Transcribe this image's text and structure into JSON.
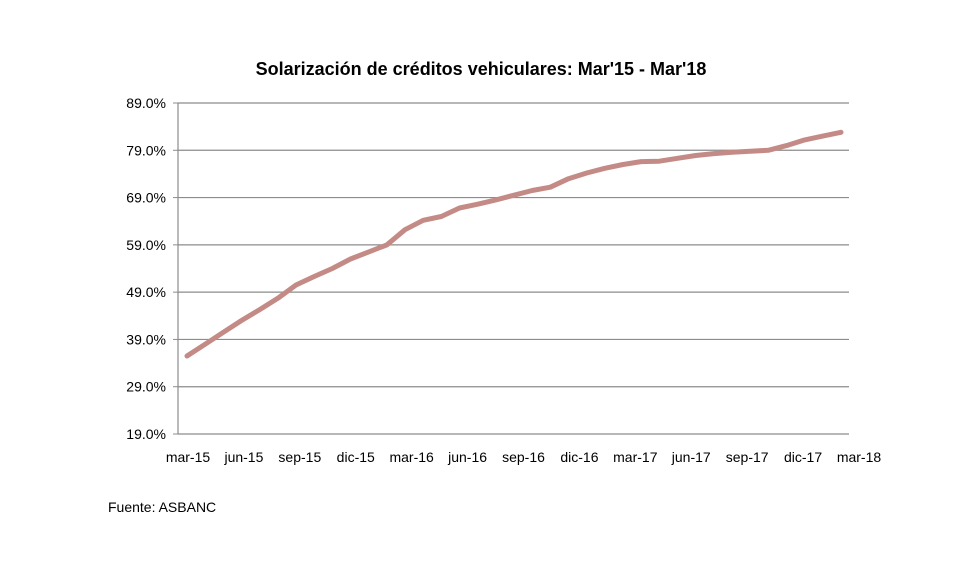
{
  "chart_data": {
    "type": "line",
    "title": "Solarización de créditos vehiculares: Mar'15 - Mar'18",
    "xlabel": "",
    "ylabel": "",
    "x_tick_labels": [
      "mar-15",
      "jun-15",
      "sep-15",
      "dic-15",
      "mar-16",
      "jun-16",
      "sep-16",
      "dic-16",
      "mar-17",
      "jun-17",
      "sep-17",
      "dic-17",
      "mar-18"
    ],
    "y_tick_labels": [
      "89.0%",
      "79.0%",
      "69.0%",
      "59.0%",
      "49.0%",
      "39.0%",
      "29.0%",
      "19.0%"
    ],
    "ylim": [
      19,
      89
    ],
    "y_ticks": [
      89,
      79,
      69,
      59,
      49,
      39,
      29,
      19
    ],
    "gridlines": "horizontal",
    "legend": "none",
    "series": [
      {
        "color": "#c48b86",
        "x": [
          "mar-15",
          "abr-15",
          "may-15",
          "jun-15",
          "jul-15",
          "ago-15",
          "sep-15",
          "oct-15",
          "nov-15",
          "dic-15",
          "ene-16",
          "feb-16",
          "mar-16",
          "abr-16",
          "may-16",
          "jun-16",
          "jul-16",
          "ago-16",
          "sep-16",
          "oct-16",
          "nov-16",
          "dic-16",
          "ene-17",
          "feb-17",
          "mar-17",
          "abr-17",
          "may-17",
          "jun-17",
          "jul-17",
          "ago-17",
          "sep-17",
          "oct-17",
          "nov-17",
          "dic-17",
          "ene-18",
          "feb-18",
          "mar-18"
        ],
        "values": [
          35.5,
          38.0,
          40.5,
          43.0,
          45.3,
          47.7,
          50.5,
          52.3,
          54.0,
          56.0,
          57.5,
          59.0,
          62.2,
          64.2,
          65.0,
          66.8,
          67.6,
          68.5,
          69.5,
          70.5,
          71.2,
          73.0,
          74.2,
          75.2,
          76.0,
          76.6,
          76.7,
          77.3,
          77.9,
          78.3,
          78.6,
          78.8,
          79.0,
          80.0,
          81.2,
          82.0,
          82.8
        ]
      }
    ]
  },
  "source": "Fuente: ASBANC"
}
